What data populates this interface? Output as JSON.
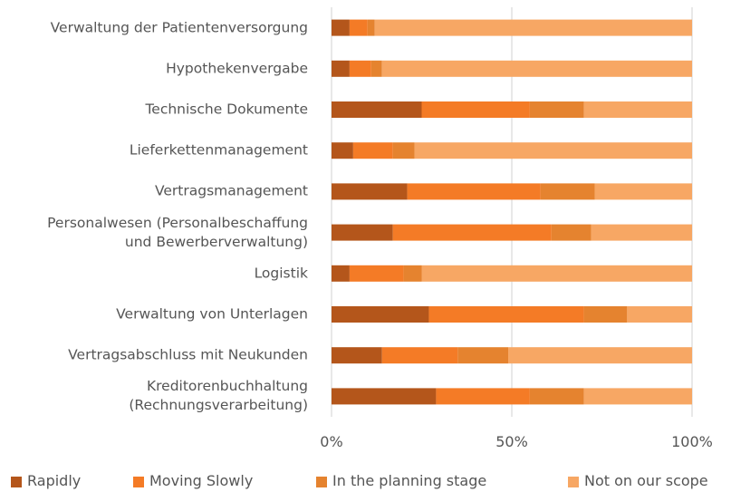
{
  "chart_data": {
    "type": "stacked_barh",
    "categories": [
      "Verwaltung der Patientenversorgung",
      "Hypothekenvergabe",
      "Technische Dokumente",
      "Lieferkettenmanagement",
      "Vertragsmanagement",
      "Personalwesen (Personalbeschaffung\nund Bewerberverwaltung)",
      "Logistik",
      "Verwaltung von Unterlagen",
      "Vertragsabschluss mit Neukunden",
      "Kreditorenbuchhaltung\n(Rechnungsverarbeitung)"
    ],
    "series": [
      {
        "name": "Rapidly",
        "color": "#b4561b",
        "values": [
          5,
          5,
          25,
          6,
          21,
          17,
          5,
          27,
          14,
          29
        ]
      },
      {
        "name": "Moving Slowly",
        "color": "#f47b26",
        "values": [
          5,
          6,
          30,
          11,
          37,
          44,
          15,
          43,
          21,
          26
        ]
      },
      {
        "name": "In the planning stage",
        "color": "#e5832f",
        "values": [
          2,
          3,
          15,
          6,
          15,
          11,
          5,
          12,
          14,
          15
        ]
      },
      {
        "name": "Not on our scope",
        "color": "#f7a764",
        "values": [
          88,
          86,
          30,
          77,
          27,
          28,
          75,
          18,
          51,
          30
        ]
      }
    ],
    "xlim": [
      0,
      100
    ],
    "xticks": [
      {
        "value": 0,
        "label": "0%"
      },
      {
        "value": 50,
        "label": "50%"
      },
      {
        "value": 100,
        "label": "100%"
      }
    ],
    "grid": true,
    "legend": "bottom"
  }
}
